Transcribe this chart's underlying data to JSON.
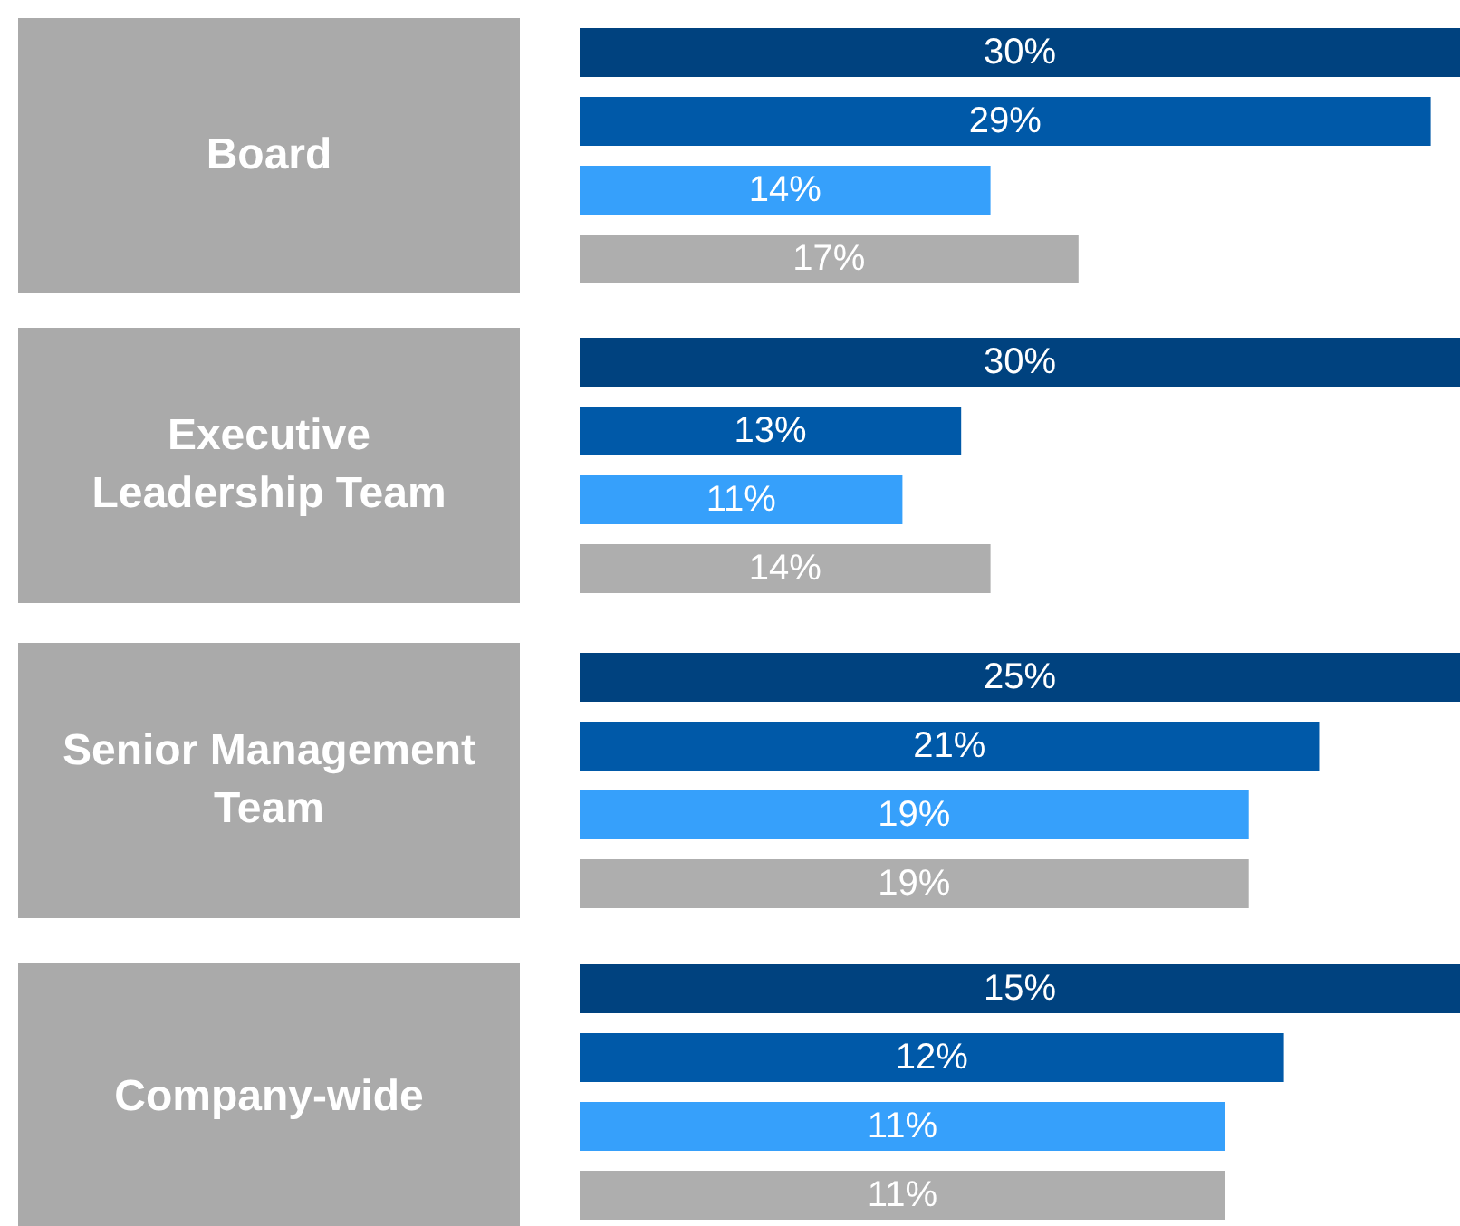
{
  "chart_data": [
    {
      "type": "bar",
      "orientation": "horizontal",
      "title": "Board",
      "categories": [
        null,
        null,
        null,
        null
      ],
      "values": [
        30,
        29,
        14,
        17
      ],
      "value_labels": [
        "30%",
        "29%",
        "14%",
        "17%"
      ],
      "colors": [
        "#00427f",
        "#0059a8",
        "#36a0fb",
        "#aeaeae"
      ],
      "tick_labels": false
    },
    {
      "type": "bar",
      "orientation": "horizontal",
      "title": "Executive\nLeadership Team",
      "categories": [
        null,
        null,
        null,
        null
      ],
      "values": [
        30,
        13,
        11,
        14
      ],
      "value_labels": [
        "30%",
        "13%",
        "11%",
        "14%"
      ],
      "colors": [
        "#00427f",
        "#0059a8",
        "#36a0fb",
        "#aeaeae"
      ],
      "tick_labels": false
    },
    {
      "type": "bar",
      "orientation": "horizontal",
      "title": "Senior Management\nTeam",
      "categories": [
        null,
        null,
        null,
        null
      ],
      "values": [
        25,
        21,
        19,
        19
      ],
      "value_labels": [
        "25%",
        "21%",
        "19%",
        "19%"
      ],
      "colors": [
        "#00427f",
        "#0059a8",
        "#36a0fb",
        "#aeaeae"
      ],
      "tick_labels": false
    },
    {
      "type": "bar",
      "orientation": "horizontal",
      "title": "Company-wide",
      "categories": [
        null,
        null,
        null,
        null
      ],
      "values": [
        15,
        12,
        11,
        11
      ],
      "value_labels": [
        "15%",
        "12%",
        "11%",
        "11%"
      ],
      "colors": [
        "#00427f",
        "#0059a8",
        "#36a0fb",
        "#aeaeae"
      ],
      "tick_labels": false
    }
  ]
}
